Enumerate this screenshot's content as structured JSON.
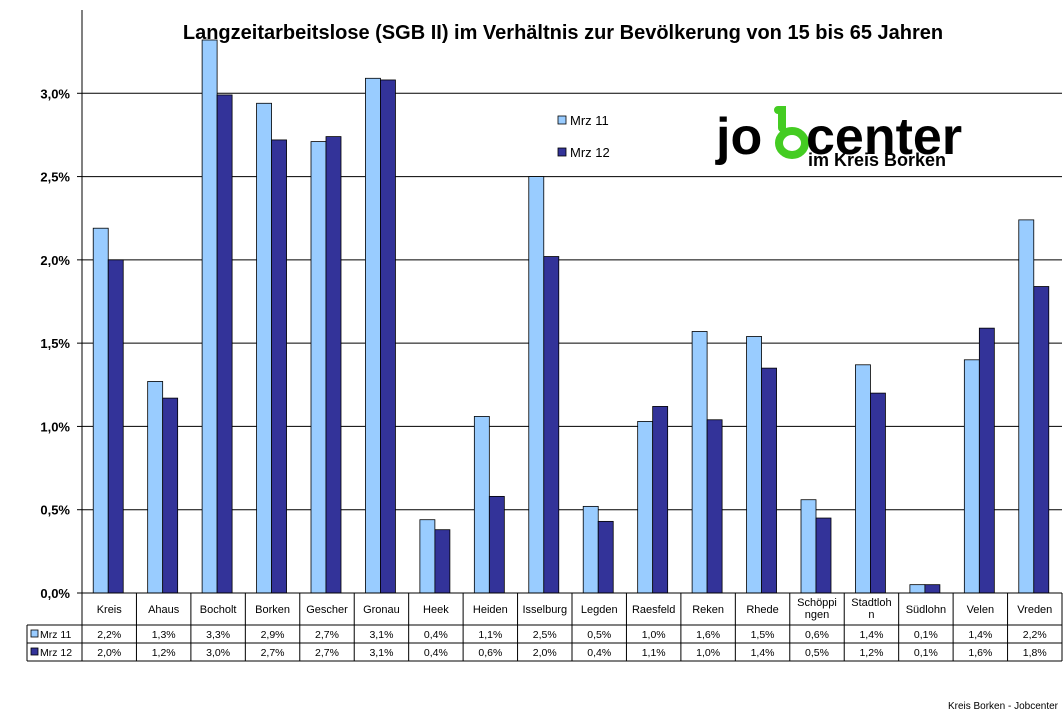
{
  "chart_data": {
    "type": "bar",
    "title": "Langzeitarbeitslose (SGB II) im Verhältnis zur Bevölkerung von 15 bis 65 Jahren",
    "categories": [
      "Kreis",
      "Ahaus",
      "Bocholt",
      "Borken",
      "Gescher",
      "Gronau",
      "Heek",
      "Heiden",
      "Isselburg",
      "Legden",
      "Raesfeld",
      "Reken",
      "Rhede",
      "Schöppingen",
      "Stadtlohn",
      "Südlohn",
      "Velen",
      "Vreden"
    ],
    "category_labels": [
      [
        "Kreis"
      ],
      [
        "Ahaus"
      ],
      [
        "Bocholt"
      ],
      [
        "Borken"
      ],
      [
        "Gescher"
      ],
      [
        "Gronau"
      ],
      [
        "Heek"
      ],
      [
        "Heiden"
      ],
      [
        "Isselburg"
      ],
      [
        "Legden"
      ],
      [
        "Raesfeld"
      ],
      [
        "Reken"
      ],
      [
        "Rhede"
      ],
      [
        "Schöppi",
        "ngen"
      ],
      [
        "Stadtloh",
        "n"
      ],
      [
        "Südlohn"
      ],
      [
        "Velen"
      ],
      [
        "Vreden"
      ]
    ],
    "series": [
      {
        "name": "Mrz 11",
        "color": "#99CCFF",
        "values": [
          2.19,
          1.27,
          3.32,
          2.94,
          2.71,
          3.09,
          0.44,
          1.06,
          2.5,
          0.52,
          1.03,
          1.57,
          1.54,
          0.56,
          1.37,
          0.05,
          1.4,
          2.24
        ],
        "table_labels": [
          "2,2%",
          "1,3%",
          "3,3%",
          "2,9%",
          "2,7%",
          "3,1%",
          "0,4%",
          "1,1%",
          "2,5%",
          "0,5%",
          "1,0%",
          "1,6%",
          "1,5%",
          "0,6%",
          "1,4%",
          "0,1%",
          "1,4%",
          "2,2%"
        ]
      },
      {
        "name": "Mrz 12",
        "color": "#333399",
        "values": [
          2.0,
          1.17,
          2.99,
          2.72,
          2.74,
          3.08,
          0.38,
          0.58,
          2.02,
          0.43,
          1.12,
          1.04,
          1.35,
          0.45,
          1.2,
          0.05,
          1.59,
          1.84
        ],
        "table_labels": [
          "2,0%",
          "1,2%",
          "3,0%",
          "2,7%",
          "2,7%",
          "3,1%",
          "0,4%",
          "0,6%",
          "2,0%",
          "0,4%",
          "1,1%",
          "1,0%",
          "1,4%",
          "0,5%",
          "1,2%",
          "0,1%",
          "1,6%",
          "1,8%"
        ]
      }
    ],
    "ylim": [
      0,
      3.5
    ],
    "yticks": [
      0,
      0.5,
      1.0,
      1.5,
      2.0,
      2.5,
      3.0
    ],
    "ytick_labels": [
      "0,0%",
      "0,5%",
      "1,0%",
      "1,5%",
      "2,0%",
      "2,5%",
      "3,0%"
    ],
    "grid": true,
    "legend_position": "top-center",
    "data_table": true
  },
  "logo": {
    "word_left": "jo",
    "word_right": "center",
    "subtitle": "im Kreis Borken",
    "green": "#44CC22"
  },
  "footer": "Kreis Borken - Jobcenter"
}
